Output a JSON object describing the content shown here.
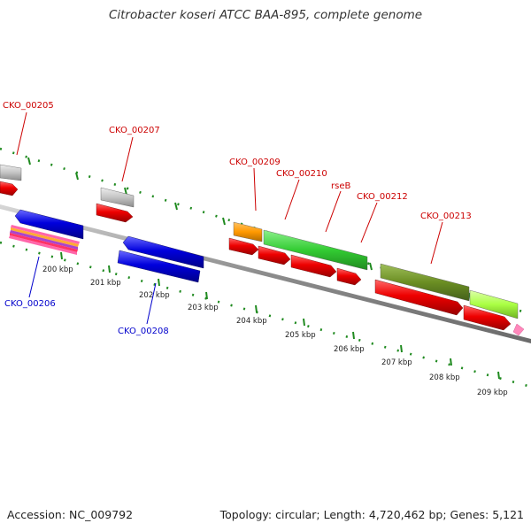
{
  "title": "Citrobacter koseri ATCC BAA-895, complete genome",
  "footer": {
    "accession": "Accession: NC_009792",
    "topology": "Topology: circular; Length: 4,720,462 bp; Genes: 5,121"
  },
  "colors": {
    "backbone": "#999999",
    "tick_marks": "#1f8a1f",
    "forward_label": "#cc0000",
    "reverse_label": "#0000cc",
    "forward_cds": "#ee0000",
    "reverse_cds": "#0000dd",
    "gray_feature": "#c8c8c8",
    "orange_feature": "#ff9900",
    "green_feature": "#33cc33",
    "olive_feature": "#6b8e23",
    "lime_feature": "#aaff44",
    "rrna_feature": "#ff6699"
  },
  "scale": {
    "unit": "kbp",
    "labels": [
      "200 kbp",
      "201 kbp",
      "202 kbp",
      "203 kbp",
      "204 kbp",
      "205 kbp",
      "206 kbp",
      "207 kbp",
      "208 kbp",
      "209 kbp"
    ]
  },
  "gene_labels": {
    "forward": [
      "CKO_00205",
      "CKO_00207",
      "CKO_00209",
      "CKO_00210",
      "rseB",
      "CKO_00212",
      "CKO_00213"
    ],
    "reverse": [
      "CKO_00206",
      "CKO_00208"
    ]
  }
}
